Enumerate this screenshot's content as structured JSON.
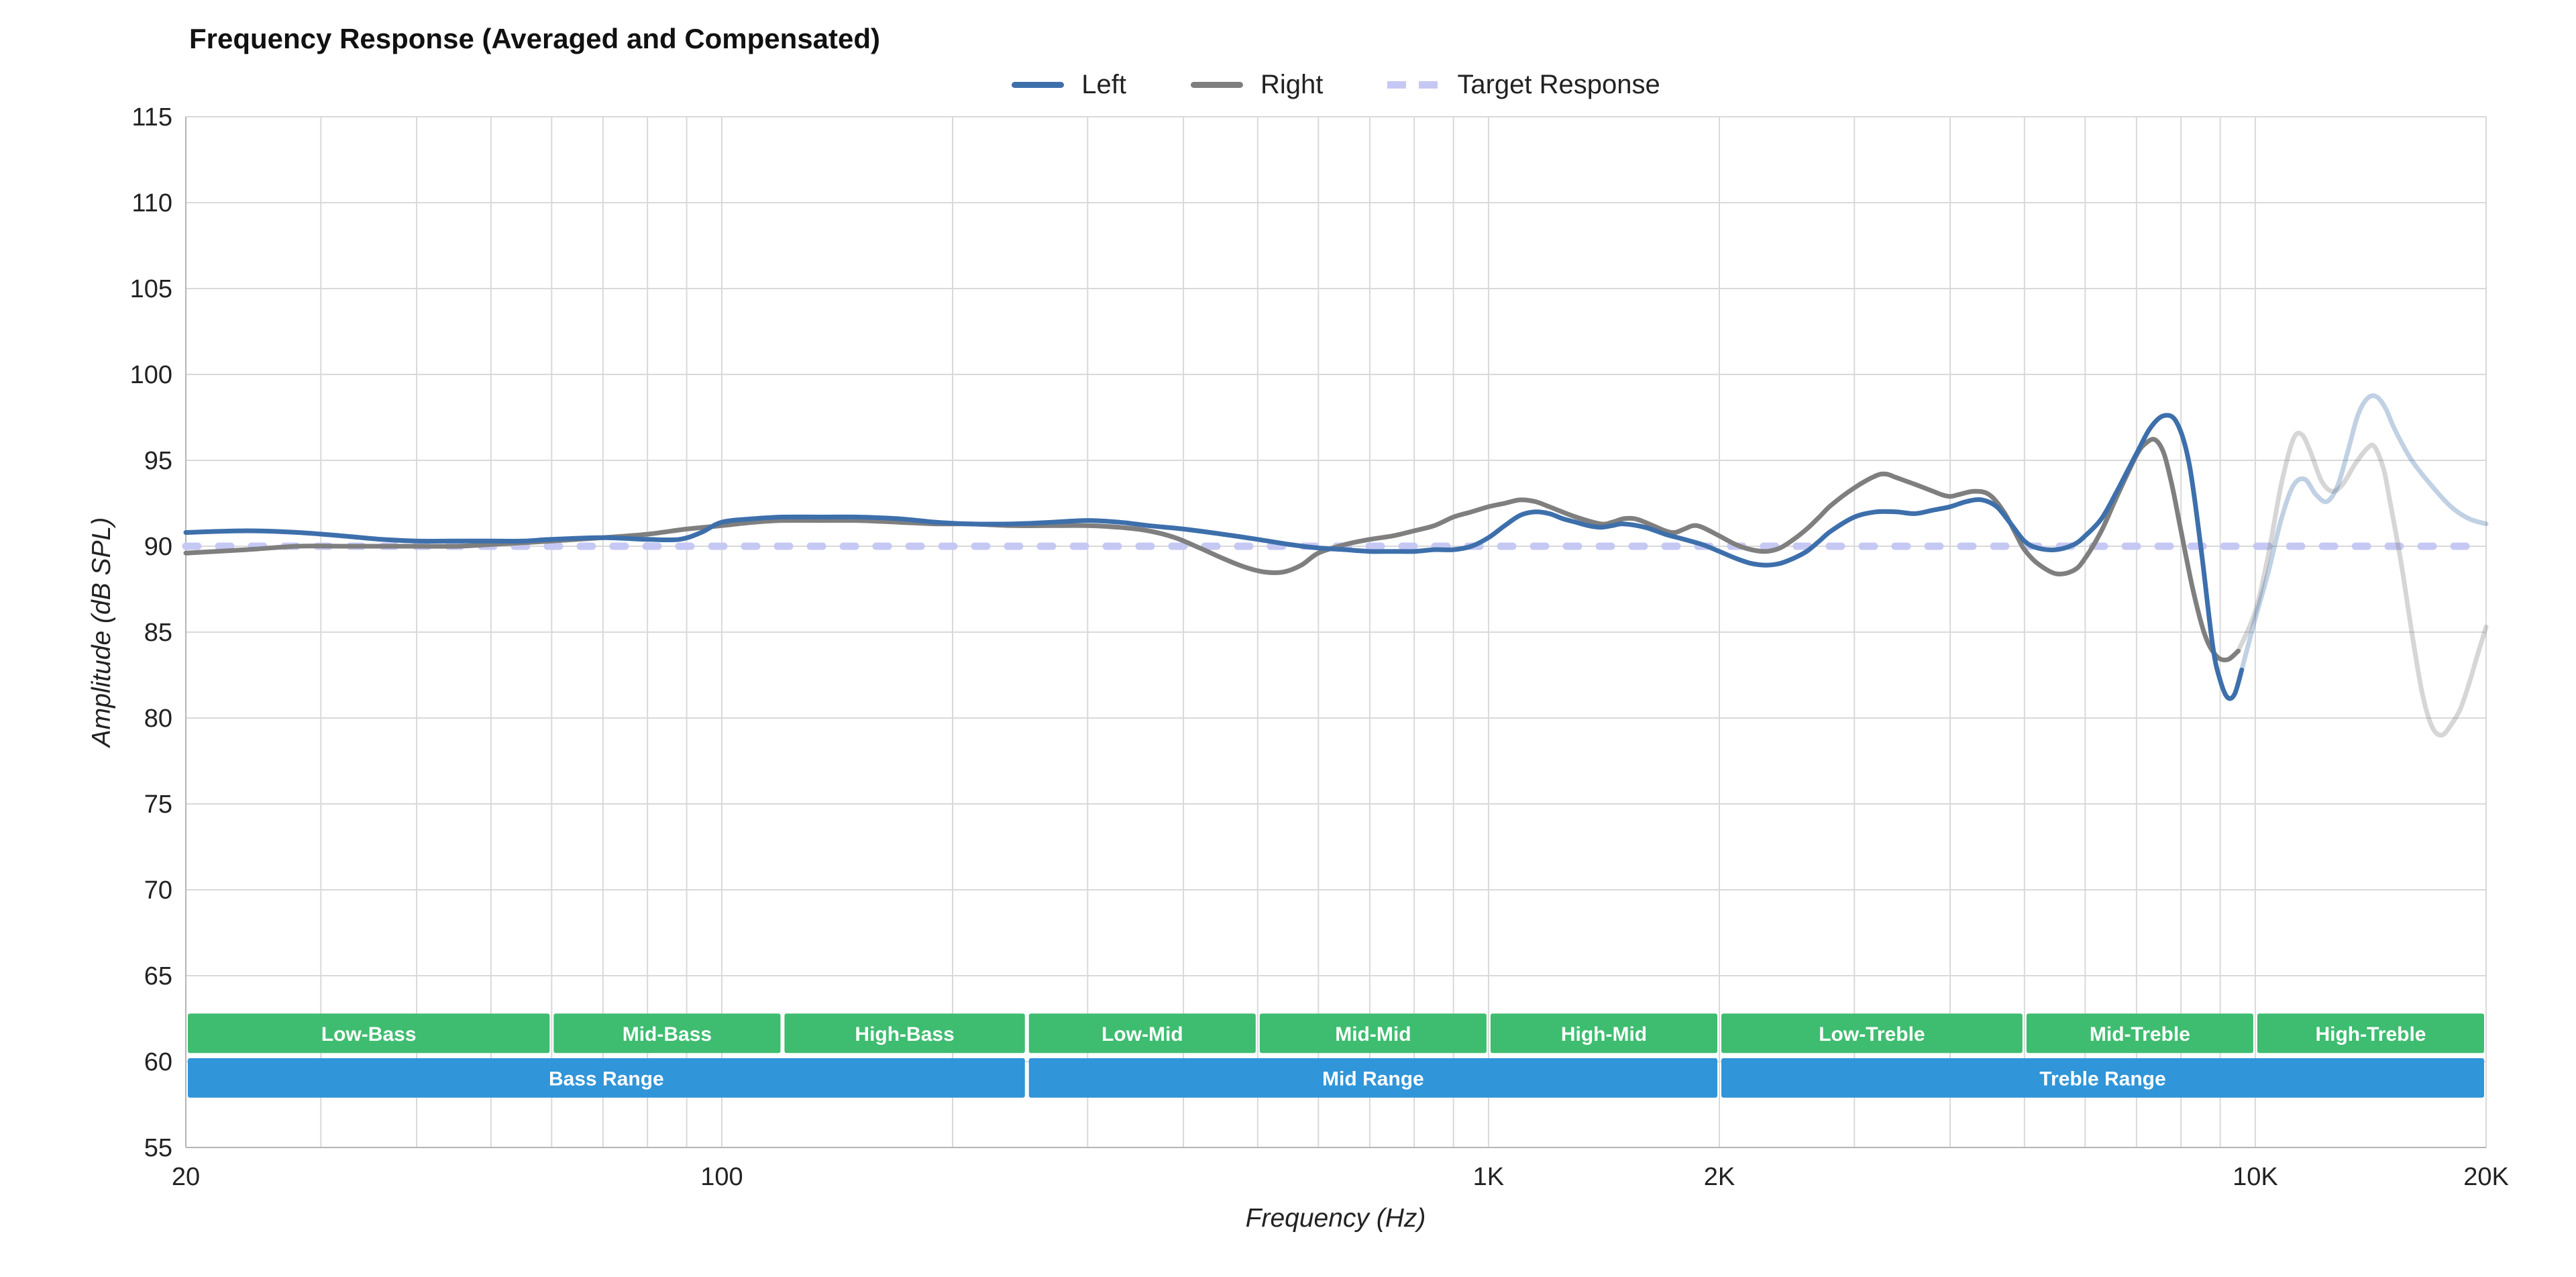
{
  "chart_data": {
    "type": "line",
    "title": "Frequency Response (Averaged and Compensated)",
    "xlabel": "Frequency (Hz)",
    "ylabel": "Amplitude (dB SPL)",
    "x_scale": "log",
    "xlim": [
      20,
      20000
    ],
    "ylim": [
      55,
      115
    ],
    "legend_position": "top",
    "grid": true,
    "y_ticks": [
      55,
      60,
      65,
      70,
      75,
      80,
      85,
      90,
      95,
      100,
      105,
      110,
      115
    ],
    "x_ticks": [
      {
        "value": 20,
        "label": "20"
      },
      {
        "value": 100,
        "label": "100"
      },
      {
        "value": 1000,
        "label": "1K"
      },
      {
        "value": 2000,
        "label": "2K"
      },
      {
        "value": 10000,
        "label": "10K"
      },
      {
        "value": 20000,
        "label": "20K"
      }
    ],
    "grid_x": [
      20,
      30,
      40,
      50,
      60,
      70,
      80,
      90,
      100,
      200,
      300,
      400,
      500,
      600,
      700,
      800,
      900,
      1000,
      2000,
      3000,
      4000,
      5000,
      6000,
      7000,
      8000,
      9000,
      10000,
      20000
    ],
    "grid_y": [
      55,
      60,
      65,
      70,
      75,
      80,
      85,
      90,
      95,
      100,
      105,
      110,
      115
    ],
    "colors": {
      "background": "#ffffff",
      "grid": "#d9d9d9",
      "axis_line": "#b5b5b5",
      "axis_text": "#222222",
      "title_text": "#111111",
      "band_text": "#ffffff",
      "left": "#3d6fab",
      "right": "#7f7f7f",
      "target": "#c6c8f4",
      "band_green": "#3ebd70",
      "band_blue": "#3095d9"
    },
    "series": [
      {
        "id": "left",
        "name": "Left",
        "color": "#3d6fab",
        "style": "solid",
        "width": 7,
        "fade_from": 9600,
        "points": [
          [
            20,
            90.8
          ],
          [
            24,
            90.9
          ],
          [
            28,
            90.8
          ],
          [
            32,
            90.6
          ],
          [
            36,
            90.4
          ],
          [
            40,
            90.3
          ],
          [
            45,
            90.3
          ],
          [
            50,
            90.3
          ],
          [
            55,
            90.3
          ],
          [
            60,
            90.4
          ],
          [
            70,
            90.5
          ],
          [
            80,
            90.4
          ],
          [
            88,
            90.4
          ],
          [
            94,
            90.8
          ],
          [
            100,
            91.4
          ],
          [
            110,
            91.6
          ],
          [
            120,
            91.7
          ],
          [
            135,
            91.7
          ],
          [
            150,
            91.7
          ],
          [
            170,
            91.6
          ],
          [
            190,
            91.4
          ],
          [
            210,
            91.3
          ],
          [
            240,
            91.3
          ],
          [
            270,
            91.4
          ],
          [
            300,
            91.5
          ],
          [
            330,
            91.4
          ],
          [
            360,
            91.2
          ],
          [
            400,
            91.0
          ],
          [
            450,
            90.7
          ],
          [
            500,
            90.4
          ],
          [
            550,
            90.1
          ],
          [
            600,
            89.9
          ],
          [
            650,
            89.8
          ],
          [
            700,
            89.7
          ],
          [
            750,
            89.7
          ],
          [
            800,
            89.7
          ],
          [
            850,
            89.8
          ],
          [
            900,
            89.8
          ],
          [
            950,
            90.0
          ],
          [
            1000,
            90.5
          ],
          [
            1050,
            91.2
          ],
          [
            1100,
            91.8
          ],
          [
            1150,
            92.0
          ],
          [
            1200,
            91.9
          ],
          [
            1250,
            91.6
          ],
          [
            1300,
            91.4
          ],
          [
            1350,
            91.2
          ],
          [
            1400,
            91.1
          ],
          [
            1450,
            91.2
          ],
          [
            1500,
            91.3
          ],
          [
            1600,
            91.1
          ],
          [
            1700,
            90.7
          ],
          [
            1800,
            90.4
          ],
          [
            1900,
            90.1
          ],
          [
            2000,
            89.7
          ],
          [
            2100,
            89.3
          ],
          [
            2200,
            89.0
          ],
          [
            2300,
            88.9
          ],
          [
            2400,
            89.0
          ],
          [
            2500,
            89.3
          ],
          [
            2600,
            89.7
          ],
          [
            2700,
            90.3
          ],
          [
            2800,
            90.9
          ],
          [
            3000,
            91.7
          ],
          [
            3200,
            92.0
          ],
          [
            3400,
            92.0
          ],
          [
            3600,
            91.9
          ],
          [
            3800,
            92.1
          ],
          [
            4000,
            92.3
          ],
          [
            4200,
            92.6
          ],
          [
            4400,
            92.7
          ],
          [
            4600,
            92.3
          ],
          [
            4800,
            91.3
          ],
          [
            5000,
            90.3
          ],
          [
            5200,
            89.9
          ],
          [
            5500,
            89.8
          ],
          [
            5800,
            90.1
          ],
          [
            6000,
            90.6
          ],
          [
            6300,
            91.6
          ],
          [
            6600,
            93.2
          ],
          [
            7000,
            95.4
          ],
          [
            7300,
            96.9
          ],
          [
            7600,
            97.6
          ],
          [
            7900,
            97.2
          ],
          [
            8200,
            94.8
          ],
          [
            8500,
            89.8
          ],
          [
            8800,
            84.2
          ],
          [
            9000,
            82.2
          ],
          [
            9200,
            81.2
          ],
          [
            9400,
            81.4
          ],
          [
            9600,
            82.8
          ],
          [
            10000,
            85.8
          ],
          [
            10400,
            88.5
          ],
          [
            10800,
            91.5
          ],
          [
            11200,
            93.5
          ],
          [
            11600,
            93.9
          ],
          [
            12000,
            93.0
          ],
          [
            12400,
            92.6
          ],
          [
            12800,
            93.5
          ],
          [
            13200,
            95.5
          ],
          [
            13600,
            97.6
          ],
          [
            14000,
            98.6
          ],
          [
            14400,
            98.7
          ],
          [
            14800,
            98.0
          ],
          [
            15200,
            96.8
          ],
          [
            16000,
            95.0
          ],
          [
            17000,
            93.5
          ],
          [
            18000,
            92.3
          ],
          [
            19000,
            91.6
          ],
          [
            20000,
            91.3
          ]
        ]
      },
      {
        "id": "right",
        "name": "Right",
        "color": "#7f7f7f",
        "style": "solid",
        "width": 7,
        "fade_from": 9500,
        "points": [
          [
            20,
            89.6
          ],
          [
            24,
            89.8
          ],
          [
            28,
            90.0
          ],
          [
            32,
            90.0
          ],
          [
            36,
            90.0
          ],
          [
            40,
            90.0
          ],
          [
            45,
            90.0
          ],
          [
            50,
            90.1
          ],
          [
            55,
            90.2
          ],
          [
            60,
            90.3
          ],
          [
            70,
            90.5
          ],
          [
            80,
            90.7
          ],
          [
            90,
            91.0
          ],
          [
            100,
            91.2
          ],
          [
            110,
            91.4
          ],
          [
            120,
            91.5
          ],
          [
            135,
            91.5
          ],
          [
            150,
            91.5
          ],
          [
            170,
            91.4
          ],
          [
            190,
            91.3
          ],
          [
            210,
            91.3
          ],
          [
            240,
            91.2
          ],
          [
            270,
            91.2
          ],
          [
            300,
            91.2
          ],
          [
            330,
            91.1
          ],
          [
            360,
            90.9
          ],
          [
            390,
            90.5
          ],
          [
            420,
            89.9
          ],
          [
            450,
            89.3
          ],
          [
            480,
            88.8
          ],
          [
            510,
            88.5
          ],
          [
            540,
            88.5
          ],
          [
            570,
            88.9
          ],
          [
            600,
            89.6
          ],
          [
            650,
            90.1
          ],
          [
            700,
            90.4
          ],
          [
            750,
            90.6
          ],
          [
            800,
            90.9
          ],
          [
            850,
            91.2
          ],
          [
            900,
            91.7
          ],
          [
            950,
            92.0
          ],
          [
            1000,
            92.3
          ],
          [
            1050,
            92.5
          ],
          [
            1100,
            92.7
          ],
          [
            1150,
            92.6
          ],
          [
            1200,
            92.3
          ],
          [
            1300,
            91.7
          ],
          [
            1400,
            91.3
          ],
          [
            1450,
            91.4
          ],
          [
            1500,
            91.6
          ],
          [
            1550,
            91.6
          ],
          [
            1600,
            91.4
          ],
          [
            1700,
            90.9
          ],
          [
            1750,
            90.8
          ],
          [
            1800,
            91.0
          ],
          [
            1850,
            91.2
          ],
          [
            1900,
            91.1
          ],
          [
            2000,
            90.6
          ],
          [
            2100,
            90.1
          ],
          [
            2200,
            89.8
          ],
          [
            2300,
            89.7
          ],
          [
            2400,
            89.9
          ],
          [
            2500,
            90.4
          ],
          [
            2600,
            91.0
          ],
          [
            2700,
            91.7
          ],
          [
            2800,
            92.4
          ],
          [
            3000,
            93.4
          ],
          [
            3200,
            94.1
          ],
          [
            3300,
            94.2
          ],
          [
            3400,
            94.0
          ],
          [
            3600,
            93.6
          ],
          [
            3800,
            93.2
          ],
          [
            3900,
            93.0
          ],
          [
            4000,
            92.9
          ],
          [
            4100,
            93.0
          ],
          [
            4300,
            93.2
          ],
          [
            4500,
            93.0
          ],
          [
            4700,
            92.0
          ],
          [
            4900,
            90.5
          ],
          [
            5000,
            89.8
          ],
          [
            5200,
            89.0
          ],
          [
            5500,
            88.4
          ],
          [
            5800,
            88.6
          ],
          [
            6000,
            89.3
          ],
          [
            6300,
            90.9
          ],
          [
            6600,
            92.9
          ],
          [
            7000,
            95.3
          ],
          [
            7200,
            96.0
          ],
          [
            7400,
            96.2
          ],
          [
            7600,
            95.4
          ],
          [
            7800,
            93.4
          ],
          [
            8000,
            90.9
          ],
          [
            8300,
            87.4
          ],
          [
            8600,
            84.8
          ],
          [
            8900,
            83.6
          ],
          [
            9200,
            83.4
          ],
          [
            9500,
            83.9
          ],
          [
            10000,
            86.2
          ],
          [
            10400,
            89.5
          ],
          [
            10800,
            93.5
          ],
          [
            11200,
            96.2
          ],
          [
            11500,
            96.5
          ],
          [
            11800,
            95.5
          ],
          [
            12200,
            93.8
          ],
          [
            12600,
            93.2
          ],
          [
            13000,
            93.6
          ],
          [
            13500,
            94.8
          ],
          [
            14000,
            95.7
          ],
          [
            14300,
            95.8
          ],
          [
            14700,
            94.5
          ],
          [
            15000,
            92.5
          ],
          [
            15500,
            89.0
          ],
          [
            16000,
            85.0
          ],
          [
            16500,
            81.5
          ],
          [
            17000,
            79.5
          ],
          [
            17500,
            79.0
          ],
          [
            18000,
            79.6
          ],
          [
            18500,
            80.5
          ],
          [
            19000,
            82.0
          ],
          [
            19500,
            83.7
          ],
          [
            20000,
            85.3
          ]
        ]
      },
      {
        "id": "target",
        "name": "Target Response",
        "color": "#c6c8f4",
        "style": "dashed",
        "width": 11,
        "points": [
          [
            20,
            90
          ],
          [
            200,
            90
          ],
          [
            2000,
            90
          ],
          [
            20000,
            90
          ]
        ]
      }
    ],
    "bands": [
      {
        "name": "sub-bands",
        "color": "#3ebd70",
        "db_top": 62.8,
        "db_bottom": 60.5,
        "segments": [
          {
            "label": "Low-Bass",
            "from": 20,
            "to": 60
          },
          {
            "label": "Mid-Bass",
            "from": 60,
            "to": 120
          },
          {
            "label": "High-Bass",
            "from": 120,
            "to": 250
          },
          {
            "label": "Low-Mid",
            "from": 250,
            "to": 500
          },
          {
            "label": "Mid-Mid",
            "from": 500,
            "to": 1000
          },
          {
            "label": "High-Mid",
            "from": 1000,
            "to": 2000
          },
          {
            "label": "Low-Treble",
            "from": 2000,
            "to": 5000
          },
          {
            "label": "Mid-Treble",
            "from": 5000,
            "to": 10000
          },
          {
            "label": "High-Treble",
            "from": 10000,
            "to": 20000
          }
        ]
      },
      {
        "name": "ranges",
        "color": "#3095d9",
        "db_top": 60.2,
        "db_bottom": 57.9,
        "segments": [
          {
            "label": "Bass Range",
            "from": 20,
            "to": 250
          },
          {
            "label": "Mid Range",
            "from": 250,
            "to": 2000
          },
          {
            "label": "Treble Range",
            "from": 2000,
            "to": 20000
          }
        ]
      }
    ]
  }
}
